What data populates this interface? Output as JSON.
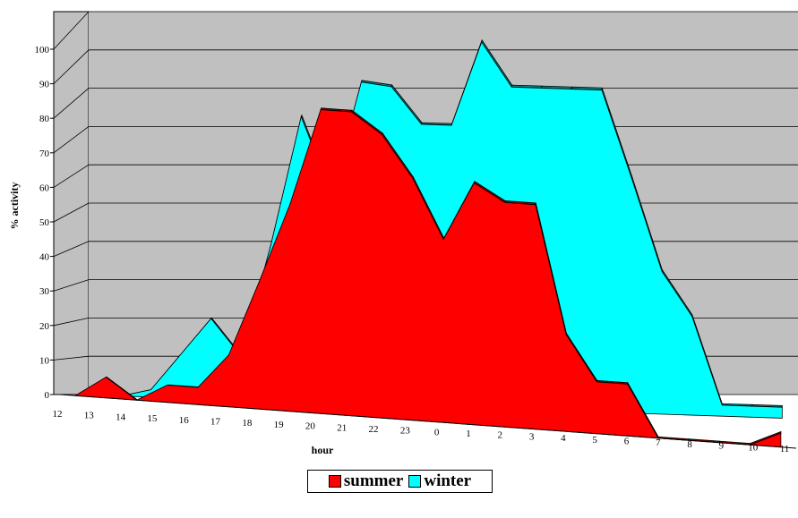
{
  "chart_data": {
    "type": "area",
    "title": "",
    "xlabel": "hour",
    "ylabel": "% activity",
    "ylim": [
      0,
      100
    ],
    "yticks": [
      "0",
      "10",
      "20",
      "30",
      "40",
      "50",
      "60",
      "70",
      "80",
      "90",
      "100"
    ],
    "categories": [
      "12",
      "13",
      "14",
      "15",
      "16",
      "17",
      "18",
      "19",
      "20",
      "21",
      "22",
      "23",
      "0",
      "1",
      "2",
      "3",
      "4",
      "5",
      "6",
      "7",
      "8",
      "9",
      "10",
      "11"
    ],
    "series": [
      {
        "name": "summer",
        "color": "#ff0000",
        "values": [
          0,
          6,
          0,
          5,
          5,
          15,
          37,
          60,
          88,
          88,
          82,
          70,
          53,
          70,
          65,
          65,
          28,
          15,
          15,
          0,
          0,
          0,
          0,
          4
        ]
      },
      {
        "name": "winter",
        "color": "#00ffff",
        "values": [
          0,
          0,
          2,
          12,
          22,
          12,
          43,
          78,
          57,
          88,
          87,
          77,
          77,
          100,
          88,
          88,
          88,
          88,
          64,
          39,
          27,
          3,
          3,
          3
        ]
      }
    ],
    "grid": true,
    "legend_position": "bottom",
    "three_d": true,
    "wall_color": "#c0c0c0"
  }
}
